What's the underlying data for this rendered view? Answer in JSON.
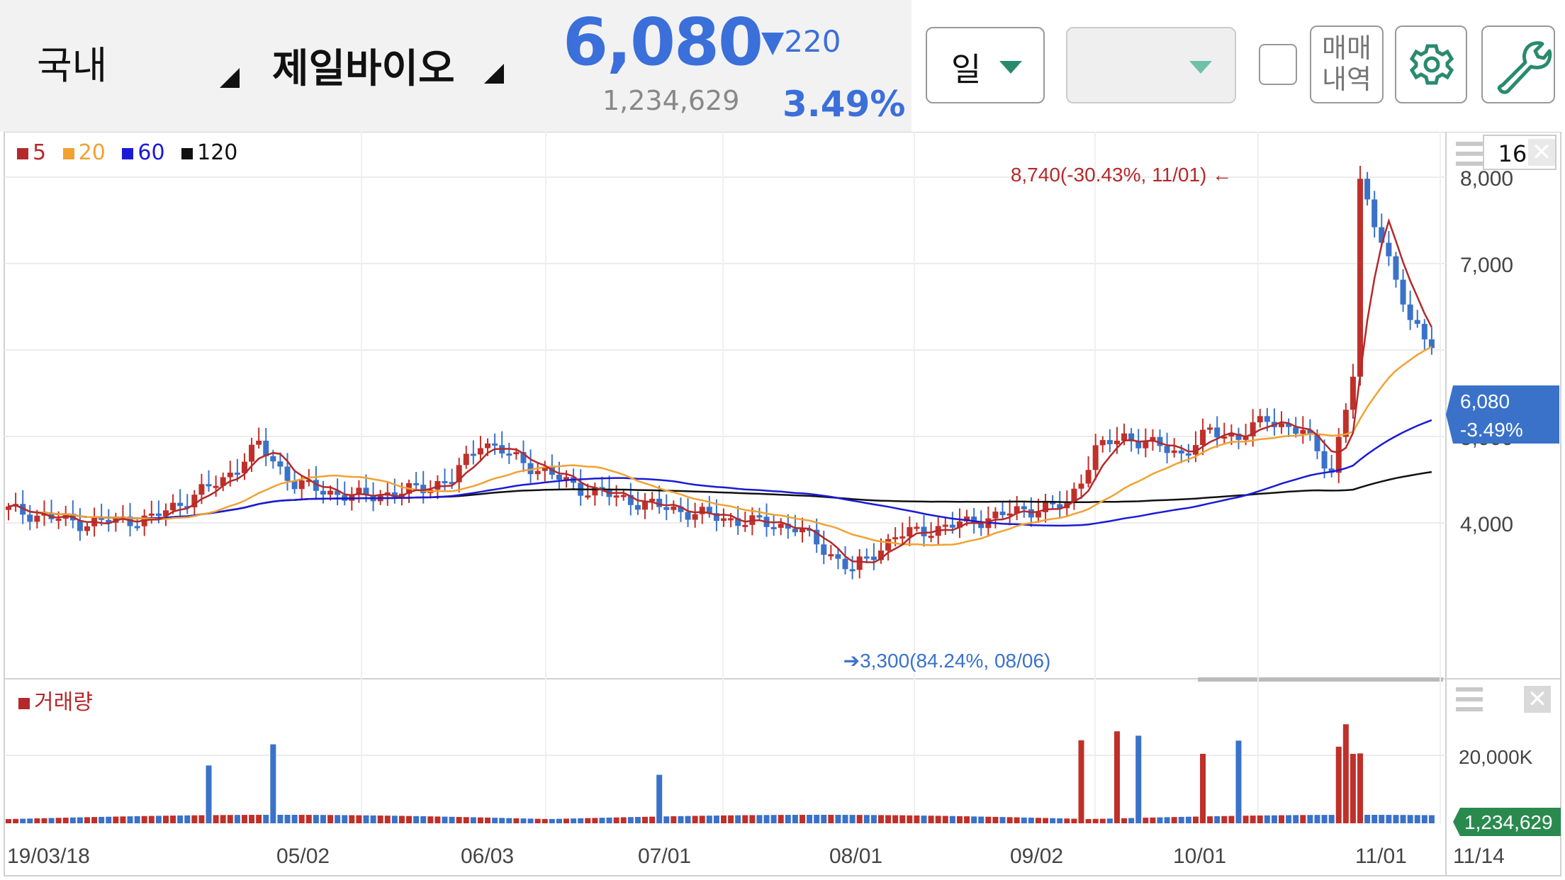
{
  "header": {
    "market": "국내",
    "stock_name": "제일바이오",
    "price": "6,080",
    "change": "▼220",
    "volume": "1,234,629",
    "change_pct": "3.49%"
  },
  "toolbar": {
    "period_label": "일",
    "chart_type_label": "",
    "trade_history_label_1": "매매",
    "trade_history_label_2": "내역"
  },
  "chart": {
    "candle_count": "166",
    "legend": {
      "ma5": "5",
      "ma20": "20",
      "ma60": "60",
      "ma120": "120"
    },
    "high_annotation": "8,740(-30.43%, 11/01)",
    "low_annotation": "3,300(84.24%, 08/06)",
    "current_price_badge": "6,080",
    "current_pct_badge": "-3.49%",
    "volume_legend": "거래량",
    "volume_badge": "1,234,629",
    "colors": {
      "up": "#c0302a",
      "down": "#3a72c9",
      "ma5": "#b5292a",
      "ma20": "#f0a233",
      "ma60": "#1a1ad6",
      "ma120": "#111111"
    }
  },
  "chart_data": {
    "type": "candlestick",
    "price_axis": {
      "ticks": [
        "8,000",
        "7,000",
        "5,000",
        "4,000"
      ],
      "range": [
        3000,
        9000
      ]
    },
    "volume_axis": {
      "ticks": [
        "20,000K"
      ]
    },
    "x_ticks": [
      "19/03/18",
      "05/02",
      "06/03",
      "07/01",
      "08/01",
      "09/02",
      "10/01",
      "11/01",
      "11/14"
    ],
    "high": {
      "value": 8740,
      "date": "11/01"
    },
    "low": {
      "value": 3300,
      "date": "08/06"
    },
    "last_price": 6080,
    "last_volume": 1234629
  }
}
